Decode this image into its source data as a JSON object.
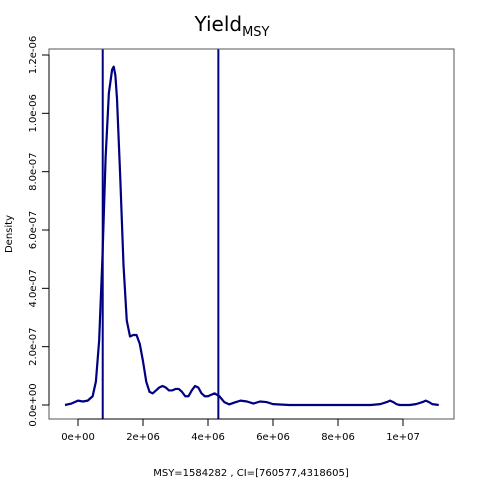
{
  "chart_data": {
    "type": "line",
    "title_main": "Yield",
    "title_sub": "MSY",
    "xlabel": "MSY=1584282 , CI=[760577,4318605]",
    "ylabel": "Density",
    "xlim": [
      -500000,
      11500000
    ],
    "ylim": [
      -5e-14,
      1.2e-06
    ],
    "x_ticks": [
      0,
      2000000,
      4000000,
      6000000,
      8000000,
      10000000
    ],
    "x_tick_labels": [
      "0e+00",
      "2e+06",
      "4e+06",
      "6e+06",
      "8e+06",
      "1e+07"
    ],
    "y_ticks": [
      0,
      2e-07,
      4e-07,
      6e-07,
      8e-07,
      1e-06,
      1.2e-06
    ],
    "y_tick_labels": [
      "0.0e+00",
      "2.0e-07",
      "4.0e-07",
      "6.0e-07",
      "8.0e-07",
      "1.0e-06",
      "1.2e-06"
    ],
    "vlines": [
      760577,
      4318605
    ],
    "line_color": "#000080",
    "series": [
      {
        "x": [
          -400000,
          -200000,
          0,
          150000,
          300000,
          450000,
          550000,
          650000,
          750000,
          850000,
          950000,
          1050000,
          1100000,
          1150000,
          1200000,
          1300000,
          1400000,
          1500000,
          1600000,
          1700000,
          1800000,
          1900000,
          2000000,
          2100000,
          2200000,
          2300000,
          2400000,
          2500000,
          2600000,
          2700000,
          2800000,
          2900000,
          3000000,
          3100000,
          3200000,
          3300000,
          3400000,
          3500000,
          3600000,
          3700000,
          3800000,
          3900000,
          4000000,
          4100000,
          4200000,
          4350000,
          4500000,
          4650000,
          4800000,
          5000000,
          5200000,
          5400000,
          5600000,
          5800000,
          6000000,
          6500000,
          7000000,
          7500000,
          8000000,
          8500000,
          9000000,
          9300000,
          9500000,
          9600000,
          9700000,
          9800000,
          9900000,
          10000000,
          10200000,
          10400000,
          10600000,
          10700000,
          10800000,
          10900000,
          11100000
        ],
        "y": [
          0,
          5e-09,
          1.5e-08,
          1.2e-08,
          1.5e-08,
          3e-08,
          8e-08,
          2.2e-07,
          5e-07,
          8.5e-07,
          1.07e-06,
          1.15e-06,
          1.16e-06,
          1.13e-06,
          1.05e-06,
          7.8e-07,
          4.8e-07,
          2.9e-07,
          2.35e-07,
          2.4e-07,
          2.4e-07,
          2.1e-07,
          1.5e-07,
          8e-08,
          4.5e-08,
          4e-08,
          5e-08,
          6e-08,
          6.5e-08,
          6e-08,
          5e-08,
          5e-08,
          5.5e-08,
          5.5e-08,
          4.5e-08,
          3e-08,
          3e-08,
          5e-08,
          6.5e-08,
          6e-08,
          4e-08,
          3e-08,
          3e-08,
          3.5e-08,
          4e-08,
          3e-08,
          1e-08,
          2e-09,
          8e-09,
          1.5e-08,
          1.2e-08,
          5e-09,
          1.2e-08,
          1e-08,
          3e-09,
          0,
          0,
          0,
          0,
          0,
          0,
          3e-09,
          1e-08,
          1.5e-08,
          1e-08,
          3e-09,
          0,
          0,
          0,
          3e-09,
          1e-08,
          1.5e-08,
          1e-08,
          3e-09,
          0
        ]
      }
    ]
  }
}
